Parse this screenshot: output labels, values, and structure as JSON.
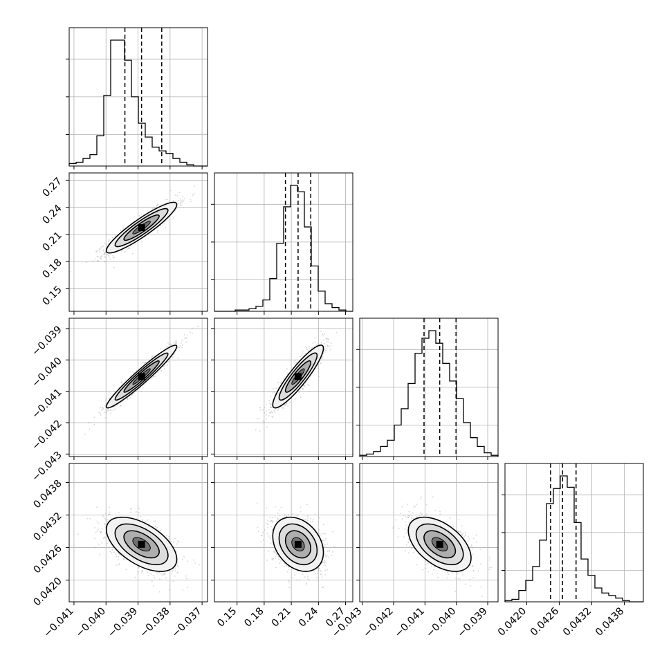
{
  "chart_data": {
    "type": "corner",
    "title": "",
    "grid": true,
    "colors": {
      "hist": "#000000",
      "contour": "#000000",
      "points": "#9a9a9a",
      "grid": "#b0b0b0",
      "quantile": "#000000"
    },
    "params": [
      {
        "ticks": [
          -0.041,
          -0.04,
          -0.039,
          -0.038,
          -0.037
        ],
        "tick_labels": [
          "−0.041",
          "−0.040",
          "−0.039",
          "−0.038",
          "−0.037"
        ],
        "range": [
          -0.04115,
          -0.03683
        ],
        "mean": -0.03889,
        "sigma": 0.00055,
        "quantiles": [
          -0.03941,
          -0.03889,
          -0.03826
        ]
      },
      {
        "ticks": [
          0.15,
          0.18,
          0.21,
          0.24,
          0.27
        ],
        "tick_labels": [
          "0.15",
          "0.18",
          "0.21",
          "0.24",
          "0.27"
        ],
        "range": [
          0.125,
          0.278
        ],
        "mean": 0.2175,
        "sigma": 0.014,
        "quantiles": [
          0.2035,
          0.2175,
          0.2315
        ]
      },
      {
        "ticks": [
          -0.043,
          -0.042,
          -0.041,
          -0.04,
          -0.039
        ],
        "tick_labels": [
          "−0.043",
          "−0.042",
          "−0.041",
          "−0.040",
          "−0.039"
        ],
        "range": [
          -0.04308,
          -0.03867
        ],
        "mean": -0.04053,
        "sigma": 0.0005,
        "quantiles": [
          -0.04103,
          -0.04053,
          -0.04001
        ]
      },
      {
        "ticks": [
          0.042,
          0.0426,
          0.0432,
          0.0438
        ],
        "tick_labels": [
          "0.0420",
          "0.0426",
          "0.0432",
          "0.0438"
        ],
        "range": [
          0.0416,
          0.04415
        ],
        "mean": 0.04266,
        "sigma": 0.00025,
        "quantiles": [
          0.04244,
          0.04266,
          0.04291
        ]
      }
    ],
    "histograms": [
      {
        "bins": 20,
        "counts": [
          2,
          3,
          6,
          9,
          24,
          56,
          100,
          100,
          84,
          55,
          34,
          23,
          15,
          12,
          10,
          6,
          3,
          1,
          0,
          0
        ]
      },
      {
        "bins": 20,
        "counts": [
          0,
          0,
          0,
          1,
          1,
          2,
          4,
          9,
          26,
          54,
          83,
          100,
          95,
          67,
          36,
          16,
          6,
          3,
          1,
          0
        ]
      },
      {
        "bins": 20,
        "counts": [
          1,
          2,
          4,
          8,
          13,
          25,
          38,
          58,
          82,
          94,
          100,
          90,
          74,
          60,
          46,
          27,
          15,
          8,
          3,
          1
        ]
      },
      {
        "bins": 20,
        "counts": [
          1,
          2,
          9,
          17,
          28,
          49,
          78,
          90,
          100,
          91,
          63,
          34,
          21,
          11,
          7,
          5,
          3,
          1,
          0,
          0
        ]
      }
    ],
    "correlations": [
      {
        "x": 0,
        "y": 1,
        "rho": 0.91
      },
      {
        "x": 0,
        "y": 2,
        "rho": 0.96
      },
      {
        "x": 1,
        "y": 2,
        "rho": 0.9
      },
      {
        "x": 0,
        "y": 3,
        "rho": -0.55
      },
      {
        "x": 1,
        "y": 3,
        "rho": -0.3
      },
      {
        "x": 2,
        "y": 3,
        "rho": -0.5
      }
    ]
  }
}
